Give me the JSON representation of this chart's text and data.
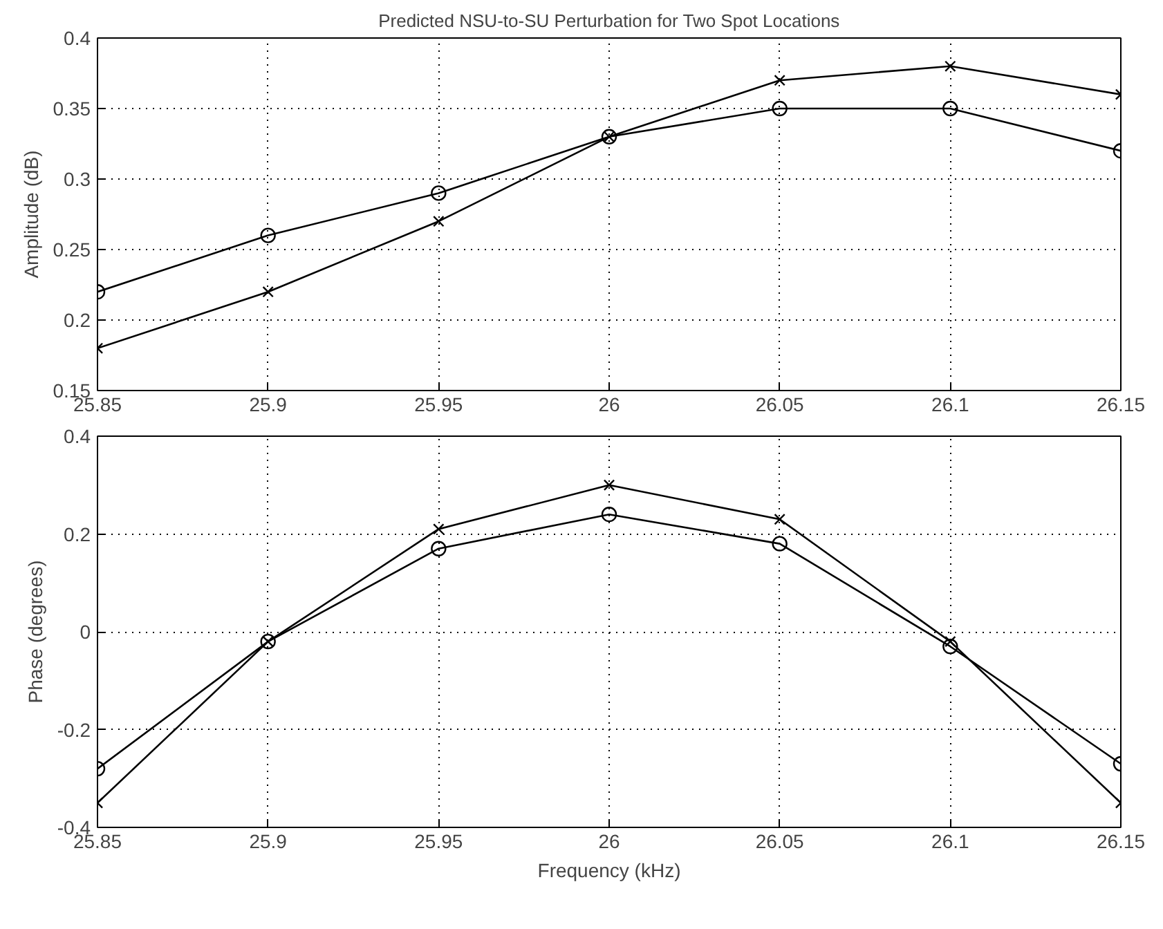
{
  "chart_data": [
    {
      "type": "line",
      "title": "Predicted NSU-to-SU Perturbation for Two Spot Locations",
      "ylabel": "Amplitude (dB)",
      "x": [
        25.85,
        25.9,
        25.95,
        26,
        26.05,
        26.1,
        26.15
      ],
      "xlim": [
        25.85,
        26.15
      ],
      "xticks": [
        25.85,
        25.9,
        25.95,
        26,
        26.05,
        26.1,
        26.15
      ],
      "ylim": [
        0.15,
        0.4
      ],
      "yticks": [
        0.15,
        0.2,
        0.25,
        0.3,
        0.35,
        0.4
      ],
      "grid": true,
      "series": [
        {
          "color": "#000000",
          "marker": "circle",
          "values": [
            0.22,
            0.26,
            0.29,
            0.33,
            0.35,
            0.35,
            0.32
          ]
        },
        {
          "color": "#000000",
          "marker": "cross",
          "values": [
            0.18,
            0.22,
            0.27,
            0.33,
            0.37,
            0.38,
            0.36
          ]
        }
      ]
    },
    {
      "type": "line",
      "xlabel": "Frequency (kHz)",
      "ylabel": "Phase (degrees)",
      "x": [
        25.85,
        25.9,
        25.95,
        26,
        26.05,
        26.1,
        26.15
      ],
      "xlim": [
        25.85,
        26.15
      ],
      "xticks": [
        25.85,
        25.9,
        25.95,
        26,
        26.05,
        26.1,
        26.15
      ],
      "ylim": [
        -0.4,
        0.4
      ],
      "yticks": [
        -0.4,
        -0.2,
        0,
        0.2,
        0.4
      ],
      "grid": true,
      "series": [
        {
          "color": "#000000",
          "marker": "circle",
          "values": [
            -0.28,
            -0.02,
            0.17,
            0.24,
            0.18,
            -0.03,
            -0.27
          ]
        },
        {
          "color": "#000000",
          "marker": "cross",
          "values": [
            -0.35,
            -0.02,
            0.21,
            0.3,
            0.23,
            -0.02,
            -0.35
          ]
        }
      ]
    }
  ]
}
